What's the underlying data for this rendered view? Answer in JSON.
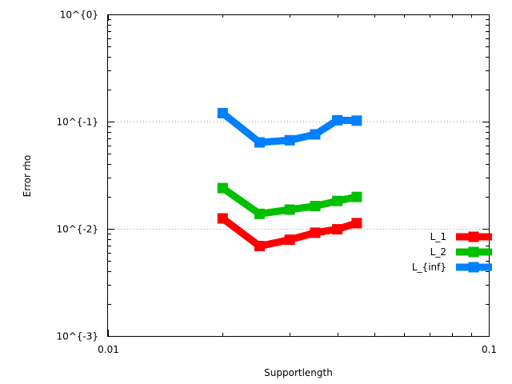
{
  "chart_data": {
    "type": "line",
    "title": "",
    "xlabel": "Supportlength",
    "ylabel": "Error rho",
    "x_scale": "log",
    "y_scale": "log",
    "xlim": [
      0.01,
      0.1
    ],
    "ylim": [
      0.001,
      1
    ],
    "x_ticks": [
      {
        "value": 0.01,
        "label": "0.01"
      },
      {
        "value": 0.1,
        "label": "0.1"
      }
    ],
    "y_ticks": [
      {
        "value": 0.001,
        "label": "10^{-3}"
      },
      {
        "value": 0.01,
        "label": "10^{-2}"
      },
      {
        "value": 0.1,
        "label": "10^{-1}"
      },
      {
        "value": 1,
        "label": "10^{0}"
      }
    ],
    "grid": "horizontal dotted at major y ticks",
    "legend_position": "right",
    "x": [
      0.02,
      0.025,
      0.03,
      0.035,
      0.04,
      0.045
    ],
    "series": [
      {
        "name": "L_1",
        "color": "#ff0000",
        "values": [
          0.0125,
          0.0069,
          0.0079,
          0.0092,
          0.0099,
          0.0113
        ]
      },
      {
        "name": "L_2",
        "color": "#00c000",
        "values": [
          0.024,
          0.0138,
          0.0151,
          0.0163,
          0.0182,
          0.0198
        ]
      },
      {
        "name": "L_{inf}",
        "color": "#0080ff",
        "values": [
          0.12,
          0.064,
          0.067,
          0.076,
          0.103,
          0.102
        ]
      }
    ]
  }
}
